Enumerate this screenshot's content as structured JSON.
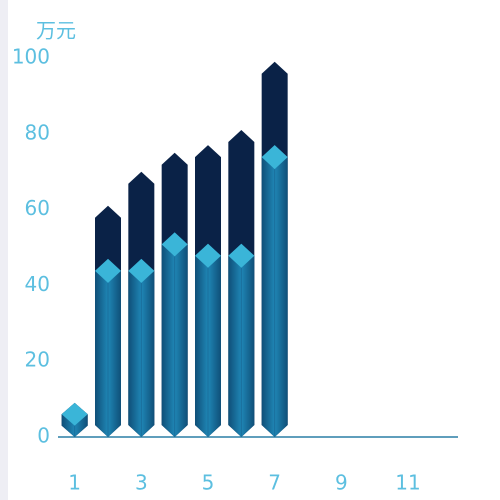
{
  "chart_data": {
    "type": "bar",
    "y_axis_label": "万元",
    "categories": [
      "1",
      null,
      "3",
      null,
      "5",
      null,
      "7",
      null,
      "9",
      null,
      "11",
      null
    ],
    "series": [
      {
        "color": "#0a2247",
        "values": [
          9,
          61,
          70,
          75,
          77,
          81,
          99,
          null,
          null,
          null,
          null,
          null
        ]
      },
      {
        "color": "#1a6f9c",
        "values": [
          9,
          47,
          47,
          54,
          51,
          51,
          77,
          null,
          null,
          null,
          null,
          null
        ]
      }
    ],
    "ylim": [
      0,
      100
    ],
    "yticks": [
      0,
      20,
      40,
      60,
      80,
      100
    ],
    "grid": false
  }
}
